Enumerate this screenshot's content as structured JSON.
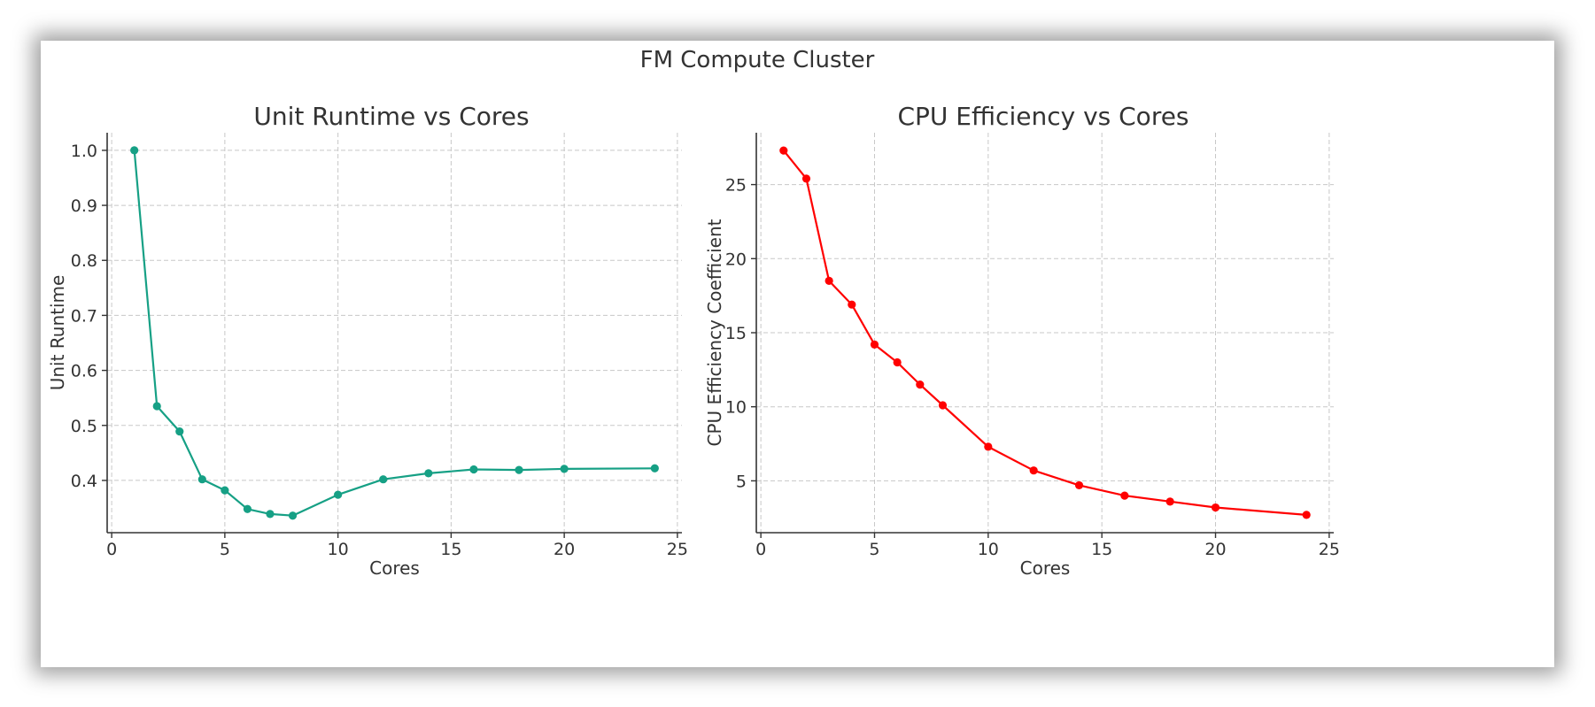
{
  "figure": {
    "suptitle": "FM Compute Cluster"
  },
  "chart_data": [
    {
      "type": "line",
      "title": "Unit Runtime vs Cores",
      "xlabel": "Cores",
      "ylabel": "Unit Runtime",
      "xlim": [
        -0.2,
        25.2
      ],
      "ylim": [
        0.305,
        1.032
      ],
      "xticks": [
        0,
        5,
        10,
        15,
        20,
        25
      ],
      "yticks": [
        0.4,
        0.5,
        0.6,
        0.7,
        0.8,
        0.9,
        1.0
      ],
      "ytick_labels": [
        "0.4",
        "0.5",
        "0.6",
        "0.7",
        "0.8",
        "0.9",
        "1.0"
      ],
      "grid": true,
      "color": "#16a085",
      "series": [
        {
          "x": [
            1,
            2,
            3,
            4,
            5,
            6,
            7,
            8,
            10,
            12,
            14,
            16,
            18,
            20,
            24
          ],
          "y": [
            1.0,
            0.535,
            0.489,
            0.402,
            0.382,
            0.348,
            0.339,
            0.336,
            0.374,
            0.402,
            0.413,
            0.42,
            0.419,
            0.421,
            0.422
          ]
        }
      ]
    },
    {
      "type": "line",
      "title": "CPU Efficiency vs Cores",
      "xlabel": "Cores",
      "ylabel": "CPU Efficiency Coefficient",
      "xlim": [
        -0.2,
        25.2
      ],
      "ylim": [
        1.5,
        28.5
      ],
      "xticks": [
        0,
        5,
        10,
        15,
        20,
        25
      ],
      "yticks": [
        5,
        10,
        15,
        20,
        25
      ],
      "ytick_labels": [
        "5",
        "10",
        "15",
        "20",
        "25"
      ],
      "grid": true,
      "color": "#ff0000",
      "series": [
        {
          "x": [
            1,
            2,
            3,
            4,
            5,
            6,
            7,
            8,
            10,
            12,
            14,
            16,
            18,
            20,
            24
          ],
          "y": [
            27.3,
            25.4,
            18.5,
            16.9,
            14.2,
            13.0,
            11.5,
            10.1,
            7.3,
            5.7,
            4.7,
            4.0,
            3.6,
            3.2,
            2.7
          ]
        }
      ]
    }
  ]
}
